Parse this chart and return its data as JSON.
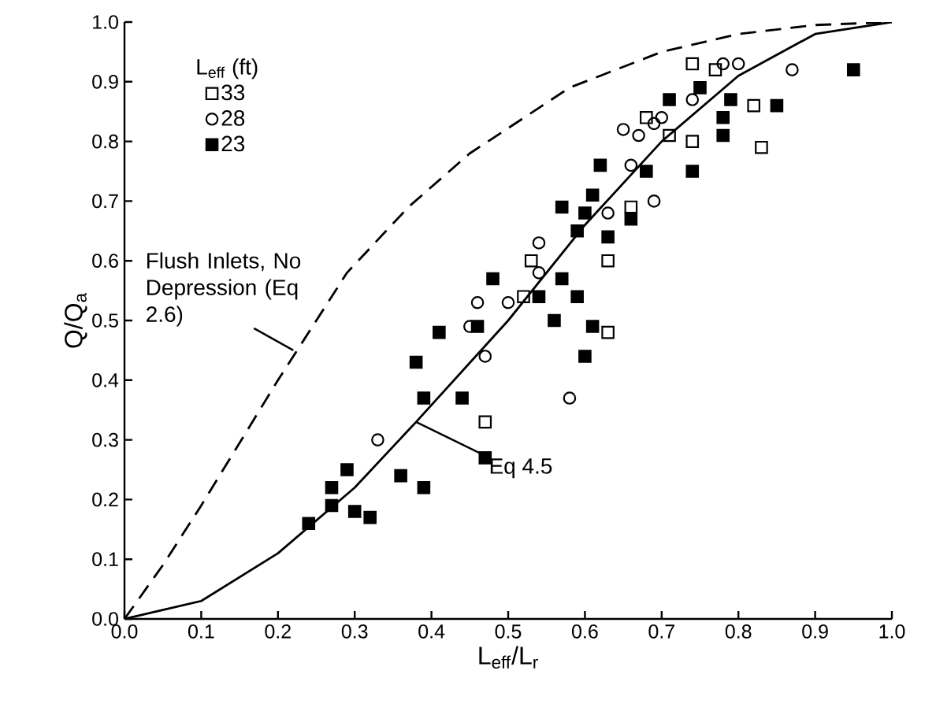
{
  "chart_data": {
    "type": "scatter",
    "xlabel": "L$_{eff}$/L$_{r}$",
    "ylabel": "Q/Q$_{a}$",
    "legend_title": "L$_{eff}$ (ft)",
    "legend": "top left",
    "grid": false,
    "xlim": [
      0,
      1
    ],
    "ylim": [
      0,
      1
    ],
    "xticks": [
      {
        "value": 0,
        "label": "0.0"
      },
      {
        "value": 0.1,
        "label": "0.1"
      },
      {
        "value": 0.2,
        "label": "0.2"
      },
      {
        "value": 0.3,
        "label": "0.3"
      },
      {
        "value": 0.4,
        "label": "0.4"
      },
      {
        "value": 0.5,
        "label": "0.5"
      },
      {
        "value": 0.6,
        "label": "0.6"
      },
      {
        "value": 0.7,
        "label": "0.7"
      },
      {
        "value": 0.8,
        "label": "0.8"
      },
      {
        "value": 0.9,
        "label": "0.9"
      },
      {
        "value": 1,
        "label": "1.0"
      }
    ],
    "yticks": [
      {
        "value": 0,
        "label": "0.0"
      },
      {
        "value": 0.1,
        "label": "0.1"
      },
      {
        "value": 0.2,
        "label": "0.2"
      },
      {
        "value": 0.3,
        "label": "0.3"
      },
      {
        "value": 0.4,
        "label": "0.4"
      },
      {
        "value": 0.5,
        "label": "0.5"
      },
      {
        "value": 0.6,
        "label": "0.6"
      },
      {
        "value": 0.7,
        "label": "0.7"
      },
      {
        "value": 0.8,
        "label": "0.8"
      },
      {
        "value": 0.9,
        "label": "0.9"
      },
      {
        "value": 1,
        "label": "1.0"
      }
    ],
    "series": [
      {
        "name": "33",
        "marker": "square-open",
        "color": "#000000",
        "x": [
          0.74,
          0.77,
          0.82,
          0.68,
          0.71,
          0.74,
          0.83,
          0.66,
          0.63,
          0.63,
          0.53,
          0.52,
          0.47
        ],
        "values": [
          0.93,
          0.92,
          0.86,
          0.84,
          0.81,
          0.8,
          0.79,
          0.69,
          0.6,
          0.48,
          0.6,
          0.54,
          0.33
        ]
      },
      {
        "name": "28",
        "marker": "circle-open",
        "color": "#000000",
        "x": [
          0.78,
          0.8,
          0.87,
          0.74,
          0.7,
          0.65,
          0.67,
          0.69,
          0.66,
          0.63,
          0.69,
          0.54,
          0.54,
          0.5,
          0.46,
          0.45,
          0.47,
          0.58,
          0.33
        ],
        "values": [
          0.93,
          0.93,
          0.92,
          0.87,
          0.84,
          0.82,
          0.81,
          0.83,
          0.76,
          0.68,
          0.7,
          0.63,
          0.58,
          0.53,
          0.53,
          0.49,
          0.44,
          0.37,
          0.3
        ]
      },
      {
        "name": "23",
        "marker": "square",
        "color": "#000000",
        "x": [
          0.24,
          0.27,
          0.27,
          0.29,
          0.3,
          0.32,
          0.36,
          0.39,
          0.38,
          0.39,
          0.44,
          0.47,
          0.6,
          0.41,
          0.46,
          0.48,
          0.54,
          0.56,
          0.57,
          0.57,
          0.59,
          0.59,
          0.6,
          0.61,
          0.61,
          0.62,
          0.63,
          0.66,
          0.68,
          0.74,
          0.71,
          0.75,
          0.79,
          0.78,
          0.78,
          0.85,
          0.95
        ],
        "values": [
          0.16,
          0.19,
          0.22,
          0.25,
          0.18,
          0.17,
          0.24,
          0.22,
          0.43,
          0.37,
          0.37,
          0.27,
          0.44,
          0.48,
          0.49,
          0.57,
          0.54,
          0.5,
          0.57,
          0.69,
          0.54,
          0.65,
          0.68,
          0.71,
          0.49,
          0.76,
          0.64,
          0.67,
          0.75,
          0.75,
          0.87,
          0.89,
          0.87,
          0.84,
          0.81,
          0.86,
          0.92
        ]
      },
      {
        "type": "line",
        "line_style": "dashed",
        "color": "#000000",
        "x": [
          0,
          0.05,
          0.1,
          0.2,
          0.29,
          0.37,
          0.45,
          0.58,
          0.7,
          0.8,
          0.9,
          1.0
        ],
        "values": [
          0,
          0.09,
          0.19,
          0.4,
          0.58,
          0.69,
          0.78,
          0.89,
          0.95,
          0.98,
          0.995,
          1.0
        ]
      },
      {
        "type": "line",
        "line_style": "solid",
        "color": "#000000",
        "x": [
          0,
          0.1,
          0.2,
          0.3,
          0.38,
          0.5,
          0.6,
          0.7,
          0.8,
          0.9,
          1.0
        ],
        "values": [
          0,
          0.03,
          0.11,
          0.22,
          0.33,
          0.5,
          0.66,
          0.8,
          0.91,
          0.98,
          1.0
        ]
      }
    ],
    "annotations": [
      {
        "text": "Flush Inlets, No Depression (Eq 2.6)",
        "x": 0.22,
        "y": 0.45
      },
      {
        "text": "Eq 4.5",
        "x": 0.38,
        "y": 0.33
      }
    ]
  }
}
